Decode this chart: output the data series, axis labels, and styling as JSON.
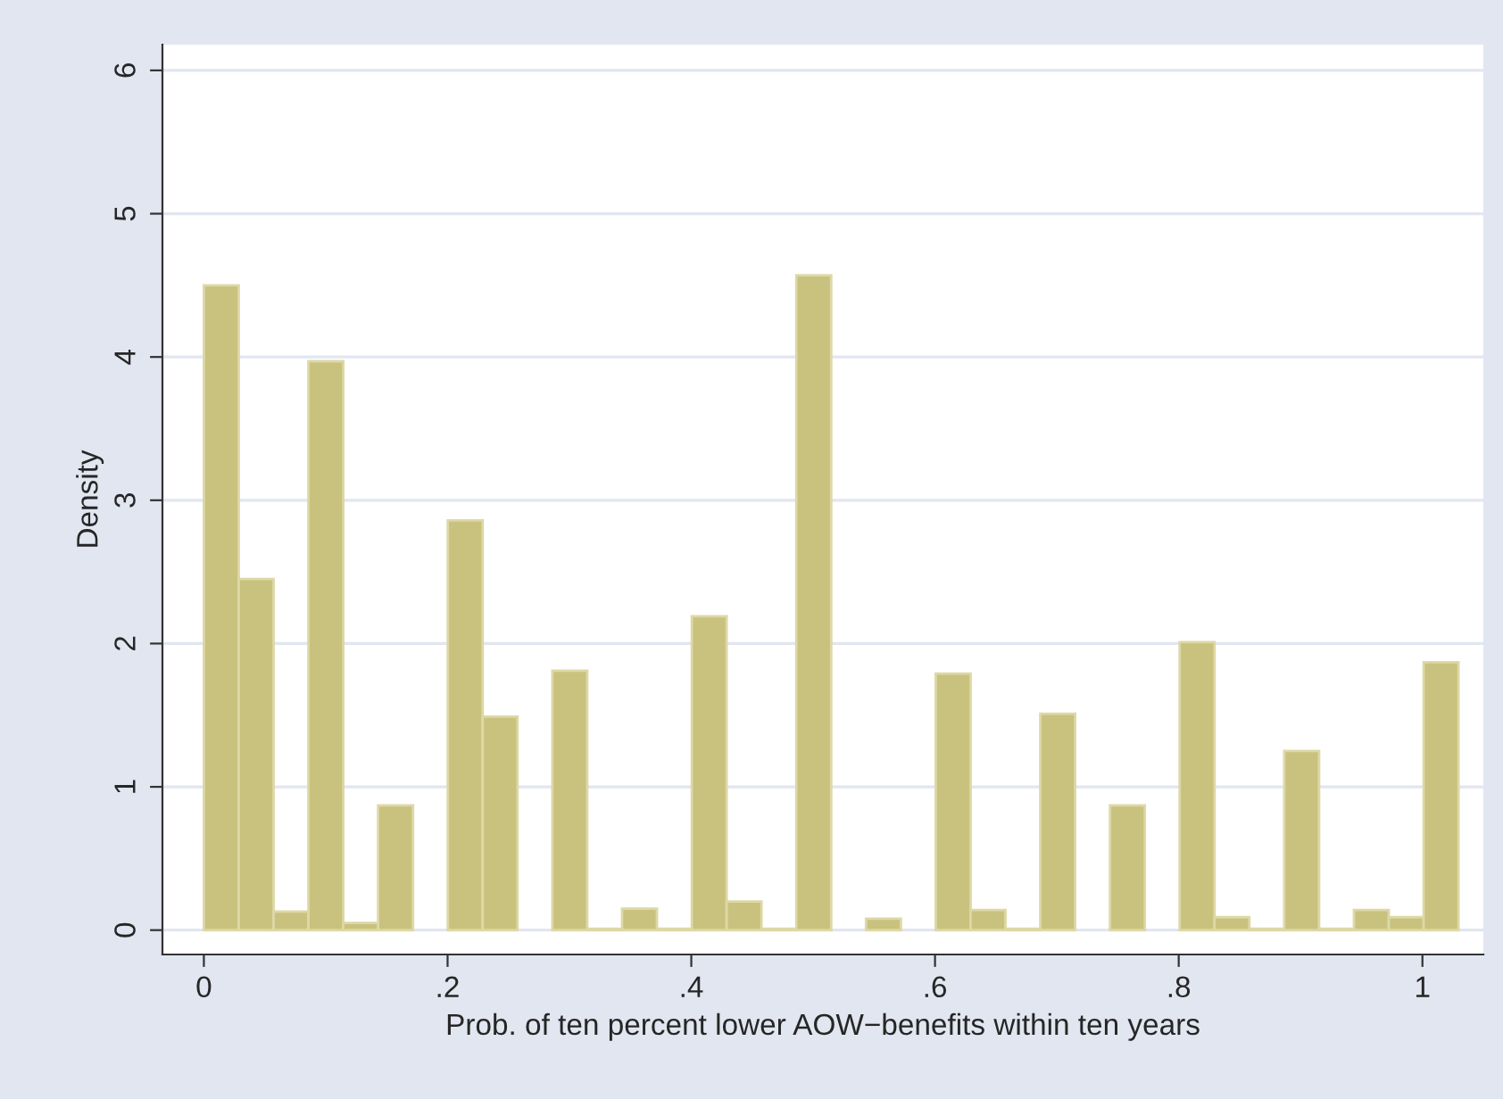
{
  "chart_data": {
    "type": "histogram",
    "xlabel": "Prob. of ten percent lower AOW−benefits within ten years",
    "ylabel": "Density",
    "bins": [
      0,
      0.0286,
      0.0572,
      0.0858,
      0.1144,
      0.143,
      0.1716,
      0.2002,
      0.2288,
      0.2574,
      0.286,
      0.3146,
      0.3432,
      0.3718,
      0.4004,
      0.429,
      0.4576,
      0.4862,
      0.5148,
      0.5434,
      0.572,
      0.6006,
      0.6292,
      0.6578,
      0.6864,
      0.715,
      0.7436,
      0.7722,
      0.8008,
      0.8294,
      0.858,
      0.8866,
      0.9152,
      0.9438,
      0.9724,
      1.001,
      1.0296
    ],
    "values": [
      4.5,
      2.45,
      0.13,
      3.97,
      0.05,
      0.87,
      0,
      2.86,
      1.49,
      0,
      1.81,
      0.01,
      0.15,
      0.01,
      2.19,
      0.2,
      0.01,
      4.57,
      0,
      0.08,
      0,
      1.79,
      0.14,
      0.01,
      1.51,
      0,
      0.87,
      0,
      2.01,
      0.09,
      0.01,
      1.25,
      0.01,
      0.14,
      0.09,
      1.87
    ],
    "color": "#c9c27e",
    "xlim": [
      -0.034,
      1.05
    ],
    "ylim": [
      -0.17,
      6.18
    ],
    "xticks": [
      0,
      {
        "value": 0.2,
        "label": ".2"
      },
      {
        "value": 0.4,
        "label": ".4"
      },
      {
        "value": 0.6,
        "label": ".6"
      },
      {
        "value": 0.8,
        "label": ".8"
      },
      1
    ],
    "yticks": [
      0,
      1,
      2,
      3,
      4,
      5,
      6
    ],
    "grid": "y"
  }
}
